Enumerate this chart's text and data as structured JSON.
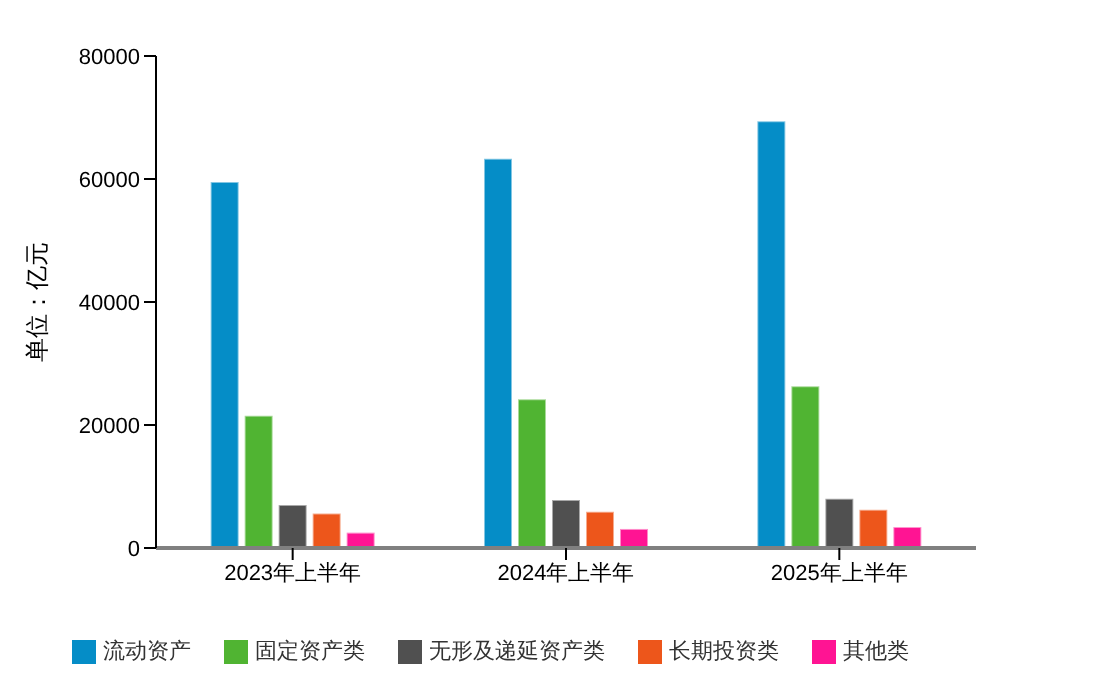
{
  "chart_data": {
    "type": "bar",
    "ylabel": "单位：亿元",
    "categories": [
      "2023年上半年",
      "2024年上半年",
      "2025年上半年"
    ],
    "series": [
      {
        "name": "流动资产",
        "color": "#058dc7",
        "values": [
          59500,
          63300,
          69400
        ]
      },
      {
        "name": "固定资产类",
        "color": "#50b432",
        "values": [
          21500,
          24200,
          26300
        ]
      },
      {
        "name": "无形及递延资产类",
        "color": "#505050",
        "values": [
          7000,
          7800,
          8000
        ]
      },
      {
        "name": "长期投资类",
        "color": "#ed561b",
        "values": [
          5600,
          5900,
          6200
        ]
      },
      {
        "name": "其他类",
        "color": "#ff1493",
        "values": [
          2500,
          3100,
          3400
        ]
      }
    ],
    "ylim": [
      0,
      80000
    ],
    "yticks": [
      0,
      20000,
      40000,
      60000,
      80000
    ],
    "grid": false,
    "legend": "bottom"
  }
}
